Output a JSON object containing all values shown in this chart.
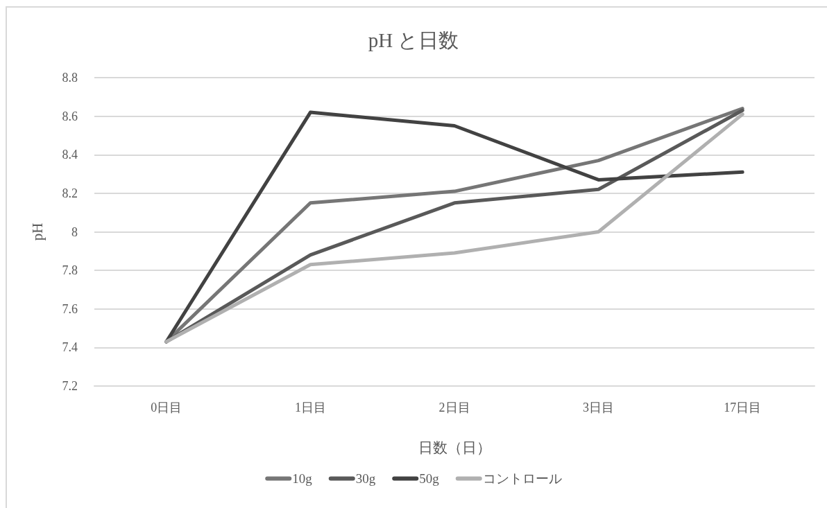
{
  "chart_data": {
    "type": "line",
    "title": "pH と日数",
    "xlabel": "日数（日）",
    "ylabel": "pH",
    "categories": [
      "0日目",
      "1日目",
      "2日目",
      "3日目",
      "17日目"
    ],
    "series": [
      {
        "name": "10g",
        "color": "#767676",
        "values": [
          7.43,
          8.15,
          8.21,
          8.37,
          8.64
        ]
      },
      {
        "name": "30g",
        "color": "#595959",
        "values": [
          7.43,
          7.88,
          8.15,
          8.22,
          8.63
        ]
      },
      {
        "name": "50g",
        "color": "#424242",
        "values": [
          7.43,
          8.62,
          8.55,
          8.27,
          8.31
        ]
      },
      {
        "name": "コントロール",
        "color": "#b0b0b0",
        "values": [
          7.43,
          7.83,
          7.89,
          8.0,
          8.61
        ]
      }
    ],
    "ylim": [
      7.2,
      8.8
    ],
    "yticks": [
      7.2,
      7.4,
      7.6,
      7.8,
      8,
      8.2,
      8.4,
      8.6,
      8.8
    ],
    "grid": "y",
    "legend": "bottom",
    "marker": "none",
    "line_style": "solid"
  }
}
